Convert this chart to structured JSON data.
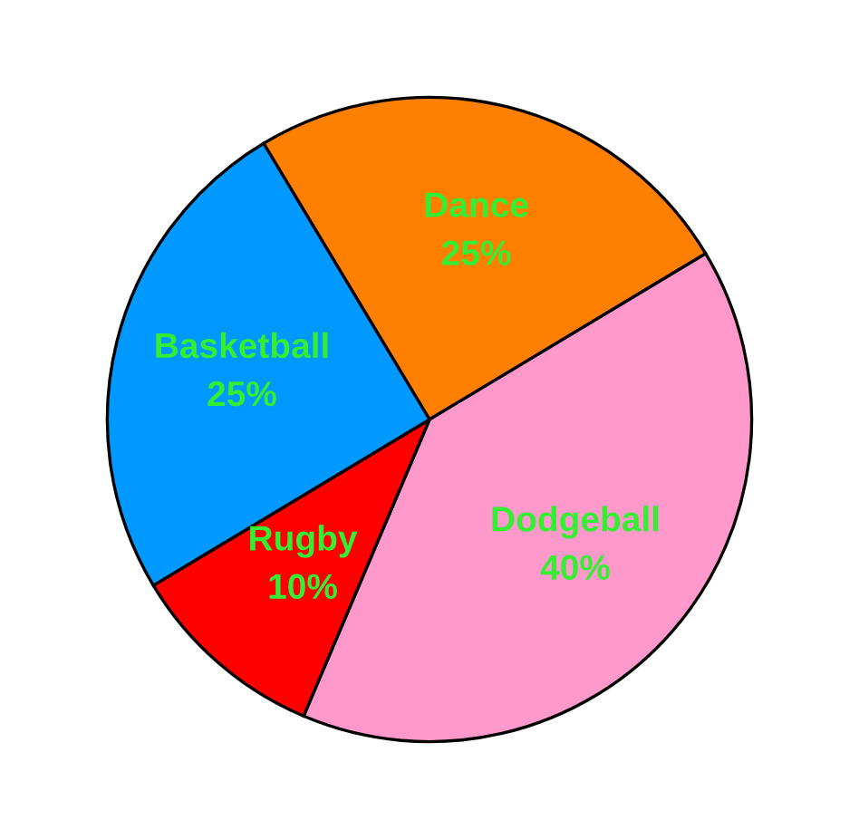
{
  "chart_data": {
    "type": "pie",
    "categories": [
      "Dance",
      "Dodgeball",
      "Rugby",
      "Basketball"
    ],
    "values": [
      25,
      40,
      10,
      25
    ],
    "colors": [
      "#ff8000",
      "#ff99cc",
      "#ff0000",
      "#0099ff"
    ],
    "value_labels": [
      "25%",
      "40%",
      "10%",
      "25%"
    ],
    "legend": false
  }
}
